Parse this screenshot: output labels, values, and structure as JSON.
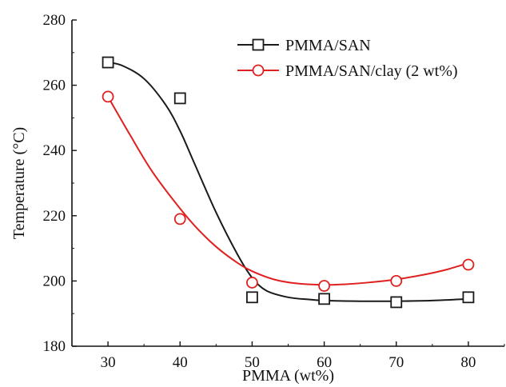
{
  "chart_data": {
    "type": "line",
    "xlabel": "PMMA (wt%)",
    "ylabel": "Temperature (°C)",
    "xlim": [
      25,
      85
    ],
    "ylim": [
      180,
      280
    ],
    "xticks": [
      30,
      40,
      50,
      60,
      70,
      80
    ],
    "yticks": [
      180,
      200,
      220,
      240,
      260,
      280
    ],
    "grid": false,
    "legend_position": "top-right",
    "series": [
      {
        "name": "PMMA/SAN",
        "color": "#1a1a1a",
        "marker": "square",
        "x": [
          30,
          40,
          50,
          60,
          70,
          80
        ],
        "y": [
          267,
          256,
          195,
          194.5,
          193.5,
          195
        ],
        "fit_curve": {
          "x": [
            30,
            32,
            35,
            38,
            40,
            42,
            45,
            48,
            50,
            52,
            55,
            58,
            60,
            65,
            70,
            75,
            80
          ],
          "y": [
            267,
            266,
            262,
            254,
            246,
            236,
            221,
            208,
            201,
            197,
            195,
            194.3,
            194,
            193.8,
            193.8,
            194,
            194.5
          ]
        }
      },
      {
        "name": "PMMA/SAN/clay (2 wt%)",
        "color": "#e02020",
        "marker": "circle",
        "x": [
          30,
          40,
          50,
          60,
          70,
          80
        ],
        "y": [
          256.5,
          219,
          199.5,
          198.5,
          200,
          205
        ],
        "fit_curve": {
          "x": [
            30,
            33,
            36,
            39,
            42,
            45,
            48,
            50,
            53,
            56,
            60,
            63,
            66,
            70,
            74,
            77,
            80
          ],
          "y": [
            256.5,
            245,
            234,
            225,
            217,
            210.5,
            205.5,
            203,
            200.5,
            199.3,
            198.8,
            199,
            199.5,
            200.5,
            202,
            203.5,
            205.5
          ]
        }
      }
    ]
  }
}
